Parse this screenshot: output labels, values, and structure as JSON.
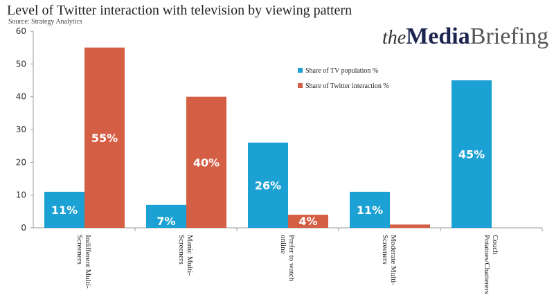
{
  "title": "Level of Twitter interaction with television by viewing pattern",
  "source": "Source: Strategy Analytics",
  "logo": {
    "part1": "the",
    "part2": "Media",
    "part3": "Briefing"
  },
  "colors": {
    "tv": "#1ba1d3",
    "twitter": "#d45f44"
  },
  "chart_data": {
    "type": "bar",
    "title": "Level of Twitter interaction with television by viewing pattern",
    "categories": [
      "Indifferent Multi-Screeners",
      "Manic Multi-Screeners",
      "Prefer to watch online",
      "Moderate Multi-Screeners",
      "Couch Potatoes/Chatterers"
    ],
    "category_lines": [
      [
        "Indifferent Multi-",
        "Screeners"
      ],
      [
        "Manic Multi-",
        "Screeners"
      ],
      [
        "Prefer to watch",
        "online"
      ],
      [
        "Moderate Multi-",
        "Screeners"
      ],
      [
        "Couch",
        "Potatoes/Chatterers"
      ]
    ],
    "series": [
      {
        "name": "Share of TV population %",
        "values": [
          11,
          7,
          26,
          11,
          45
        ],
        "labels": [
          "11%",
          "7%",
          "26%",
          "11%",
          "45%"
        ]
      },
      {
        "name": "Share of Twitter interaction %",
        "values": [
          55,
          40,
          4,
          1,
          0
        ],
        "labels": [
          "55%",
          "40%",
          "4%",
          "",
          ""
        ]
      }
    ],
    "ylim": [
      0,
      60
    ],
    "yticks": [
      "0",
      "10",
      "20",
      "30",
      "40",
      "50",
      "60"
    ],
    "grid": false,
    "legend": "center-right"
  }
}
